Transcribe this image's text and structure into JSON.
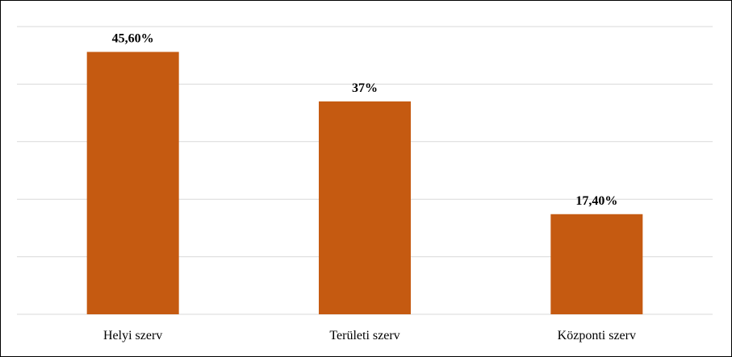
{
  "chart_data": {
    "type": "bar",
    "categories": [
      "Helyi szerv",
      "Területi szerv",
      "Központi szerv"
    ],
    "values": [
      45.6,
      37,
      17.4
    ],
    "data_labels": [
      "45,60%",
      "37%",
      "17,40%"
    ],
    "title": "",
    "xlabel": "",
    "ylabel": "",
    "ylim": [
      0,
      50
    ],
    "grid": true,
    "legend": "none",
    "bar_color": "#c55a11",
    "grid_color": "#d9d9d9"
  }
}
